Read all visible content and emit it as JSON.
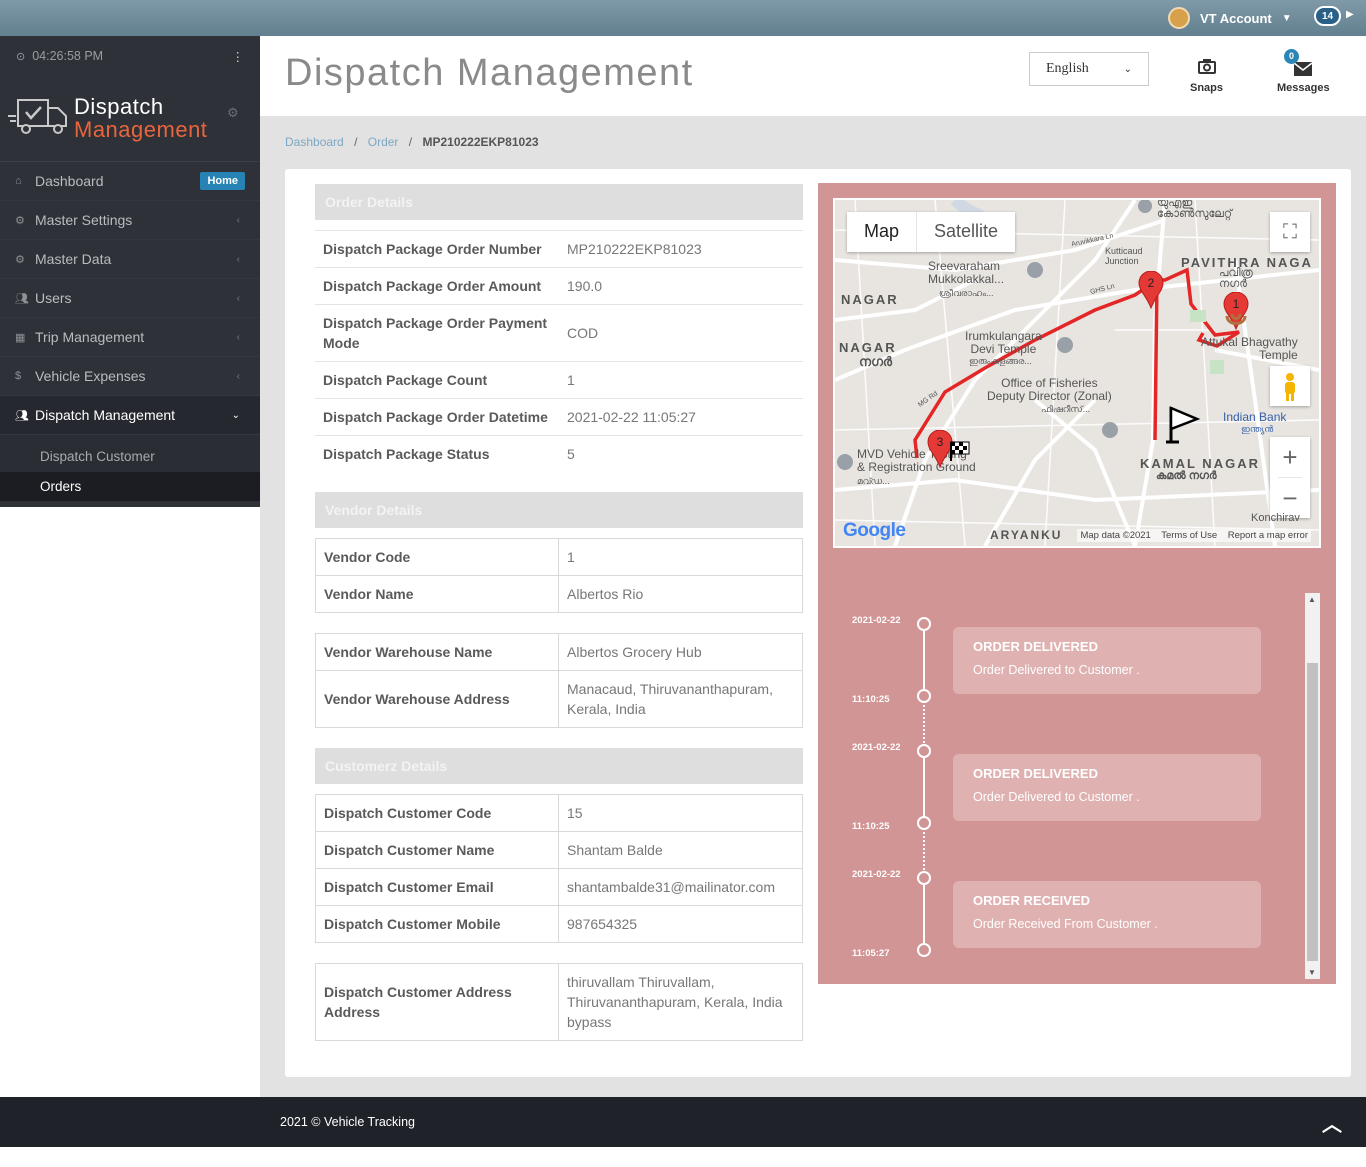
{
  "topbar": {
    "account_label": "VT Account",
    "notification_count": "14"
  },
  "sidebar": {
    "clock": "04:26:58 PM",
    "logo_line1": "Dispatch",
    "logo_line2": "Management",
    "items": [
      {
        "label": "Dashboard",
        "icon": "home-icon",
        "badge": "Home"
      },
      {
        "label": "Master Settings",
        "icon": "cogs-icon"
      },
      {
        "label": "Master Data",
        "icon": "cogs-icon"
      },
      {
        "label": "Users",
        "icon": "users-icon"
      },
      {
        "label": "Trip Management",
        "icon": "calendar-icon"
      },
      {
        "label": "Vehicle Expenses",
        "icon": "dollar-icon"
      },
      {
        "label": "Dispatch Management",
        "icon": "users-icon"
      }
    ],
    "subitems": [
      "Dispatch Customer",
      "Orders"
    ]
  },
  "header": {
    "title": "Dispatch Management",
    "language": "English",
    "snaps_label": "Snaps",
    "messages_label": "Messages",
    "messages_count": "0"
  },
  "breadcrumb": [
    "Dashboard",
    "Order",
    "MP210222EKP81023"
  ],
  "order_details": {
    "heading": "Order Details",
    "rows": [
      {
        "k": "Dispatch Package Order Number",
        "v": "MP210222EKP81023"
      },
      {
        "k": "Dispatch Package Order Amount",
        "v": "190.0"
      },
      {
        "k": "Dispatch Package Order Payment Mode",
        "v": "COD"
      },
      {
        "k": "Dispatch Package Count",
        "v": "1"
      },
      {
        "k": "Dispatch Package Order Datetime",
        "v": "2021-02-22 11:05:27"
      },
      {
        "k": "Dispatch Package Status",
        "v": "5"
      }
    ]
  },
  "vendor_details": {
    "heading": "Vendor Details",
    "rows": [
      {
        "k": "Vendor Code",
        "v": "1"
      },
      {
        "k": "Vendor Name",
        "v": "Albertos Rio"
      }
    ],
    "warehouse_rows": [
      {
        "k": "Vendor Warehouse Name",
        "v": "Albertos Grocery Hub"
      },
      {
        "k": "Vendor Warehouse Address",
        "v": "Manacaud, Thiruvananthapuram, Kerala, India"
      }
    ]
  },
  "customer_details": {
    "heading": "Customerz Details",
    "rows": [
      {
        "k": "Dispatch Customer Code",
        "v": "15"
      },
      {
        "k": "Dispatch Customer Name",
        "v": "Shantam Balde"
      },
      {
        "k": "Dispatch Customer Email",
        "v": "shantambalde31@mailinator.com"
      },
      {
        "k": "Dispatch Customer Mobile",
        "v": "987654325"
      }
    ],
    "address_rows": [
      {
        "k": "Dispatch Customer Address Address",
        "v": "thiruvallam Thiruvallam, Thiruvananthapuram, Kerala, India bypass"
      }
    ]
  },
  "map": {
    "type_buttons": [
      "Map",
      "Satellite"
    ],
    "labels": {
      "uae": "യുഎഇ\nകോൺസുലേറ്റ്",
      "pavithra": "PAVITHRA NAGA",
      "pavithra_ml": "പവിത്ര\nനഗർ",
      "aruvikkara": "Aruvikkara Ln",
      "kutticaud": "Kutticaud\nJunction",
      "sreevaraham": "Sreevaraham\nMukkolakkal...",
      "sreevaraham_ml": "ശ്രീവരാഹം...",
      "nagar1": "NAGAR",
      "nagar2": "NAGAR",
      "nagar2_ml": "നഗർ",
      "ghs": "GHS Ln",
      "irumkulangara": "Irumkulangara\nDevi Temple",
      "irumkulangara_ml": "ഇരുംകുളങ്ങര...",
      "attukal": "Attukal Bhagvathy\nTemple",
      "fisheries": "Office of Fisheries\nDeputy Director (Zonal)",
      "fisheries_ml": "ഫിഷറീസ്...",
      "indian_bank": "Indian Bank",
      "indian_bank_ml": "ഇന്ത്യൻ",
      "mvd": "MVD Vehicle Testing\n& Registration Ground",
      "mvd_ml": "മവ്ഡ...",
      "kamal": "KAMAL NAGAR",
      "kamal_ml": "കമൽ നഗർ",
      "aryanku": "ARYANKU",
      "konchira": "Konchirav",
      "mgroad": "MG Rd"
    },
    "markers": [
      "1",
      "2",
      "3"
    ],
    "google": "Google",
    "footer": "Map data ©2021    Terms of Use    Report a map error"
  },
  "timeline": [
    {
      "date": "2021-02-22",
      "time": "11:10:25",
      "title": "ORDER DELIVERED",
      "desc": "Order Delivered to Customer ."
    },
    {
      "date": "2021-02-22",
      "time": "11:10:25",
      "title": "ORDER DELIVERED",
      "desc": "Order Delivered to Customer ."
    },
    {
      "date": "2021-02-22",
      "time": "11:05:27",
      "title": "ORDER RECEIVED",
      "desc": "Order Received From Customer ."
    }
  ],
  "footer": {
    "text": "2021 © Vehicle Tracking"
  }
}
